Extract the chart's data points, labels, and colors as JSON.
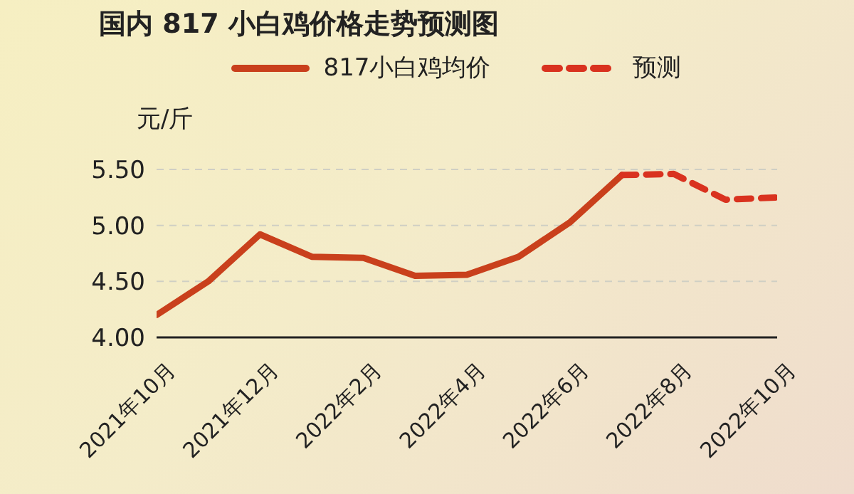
{
  "chart_data": {
    "type": "line",
    "title": "国内 817 小白鸡价格走势预测图",
    "ylabel": "元/斤",
    "categories": [
      "2021年10月",
      null,
      "2021年12月",
      null,
      "2022年2月",
      null,
      "2022年4月",
      null,
      "2022年6月",
      null,
      "2022年8月",
      null,
      "2022年10月"
    ],
    "series": [
      {
        "name": "817小白鸡均价",
        "color": "#c9401c",
        "line_style": "solid",
        "values": [
          4.2,
          4.5,
          4.92,
          4.72,
          4.71,
          4.55,
          4.56,
          4.72,
          5.03,
          5.45,
          null,
          null,
          null
        ]
      },
      {
        "name": "预测",
        "color": "#d9321f",
        "line_style": "dashed",
        "values": [
          null,
          null,
          null,
          null,
          null,
          null,
          null,
          null,
          null,
          5.45,
          5.46,
          5.23,
          5.25
        ]
      }
    ],
    "ylim": [
      4,
      5.5
    ],
    "yticks": [
      {
        "value": 4,
        "label": "4.00"
      },
      {
        "value": 4.5,
        "label": "4.50"
      },
      {
        "value": 5,
        "label": "5.00"
      },
      {
        "value": 5.5,
        "label": "5.50"
      }
    ],
    "grid": "y",
    "legend": "top",
    "marker": "none"
  }
}
